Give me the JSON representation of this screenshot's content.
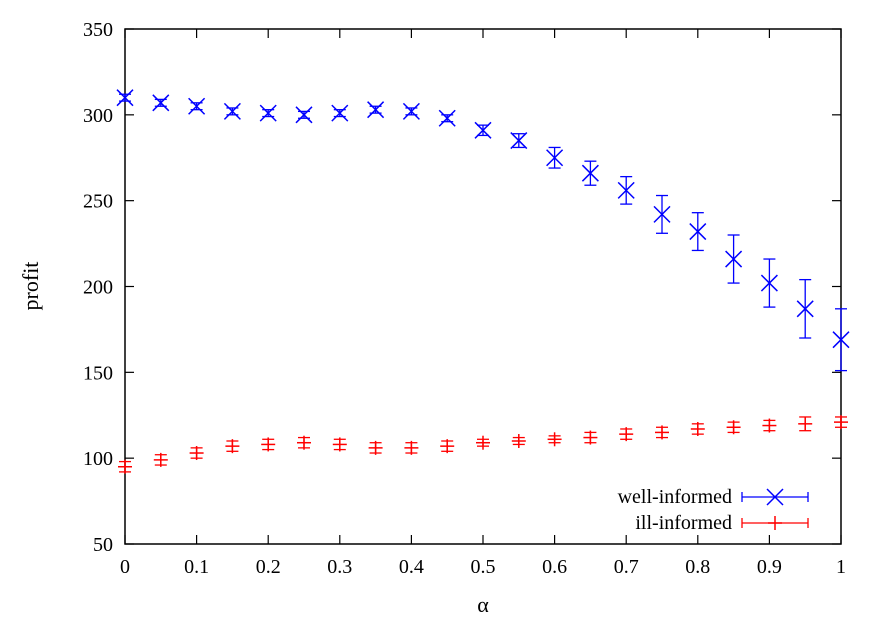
{
  "chart_data": {
    "type": "scatter",
    "xlabel": "α",
    "ylabel": "profit",
    "xlim": [
      0,
      1
    ],
    "ylim": [
      50,
      350
    ],
    "xticks": [
      0,
      0.1,
      0.2,
      0.3,
      0.4,
      0.5,
      0.6,
      0.7,
      0.8,
      0.9,
      1
    ],
    "xtick_labels": [
      "0",
      "0.1",
      "0.2",
      "0.3",
      "0.4",
      "0.5",
      "0.6",
      "0.7",
      "0.8",
      "0.9",
      "1"
    ],
    "yticks": [
      50,
      100,
      150,
      200,
      250,
      300,
      350
    ],
    "ytick_labels": [
      "50",
      "100",
      "150",
      "200",
      "250",
      "300",
      "350"
    ],
    "legend_position": "bottom-right",
    "grid": false,
    "x": [
      0,
      0.05,
      0.1,
      0.15,
      0.2,
      0.25,
      0.3,
      0.35,
      0.4,
      0.45,
      0.5,
      0.55,
      0.6,
      0.65,
      0.7,
      0.75,
      0.8,
      0.85,
      0.9,
      0.95,
      1
    ],
    "series": [
      {
        "name": "well-informed",
        "color": "#0000ff",
        "marker": "x",
        "values": [
          310,
          307,
          305,
          302,
          301,
          300,
          301,
          303,
          302,
          298,
          291,
          285,
          275,
          266,
          256,
          242,
          232,
          216,
          202,
          187,
          169
        ],
        "err": [
          2,
          2,
          2,
          2,
          2,
          2,
          2,
          2,
          2,
          2,
          3,
          4,
          6,
          7,
          8,
          11,
          11,
          14,
          14,
          17,
          18
        ]
      },
      {
        "name": "ill-informed",
        "color": "#ff0000",
        "marker": "+",
        "values": [
          95,
          99,
          103,
          107,
          108,
          109,
          108,
          106,
          106,
          107,
          109,
          110,
          111,
          112,
          114,
          115,
          117,
          118,
          119,
          120,
          121
        ],
        "err": [
          3,
          3,
          3,
          3,
          3,
          3,
          3,
          3,
          3,
          3,
          2,
          2,
          2,
          3,
          3,
          3,
          3,
          3,
          3,
          4,
          3
        ]
      }
    ]
  }
}
